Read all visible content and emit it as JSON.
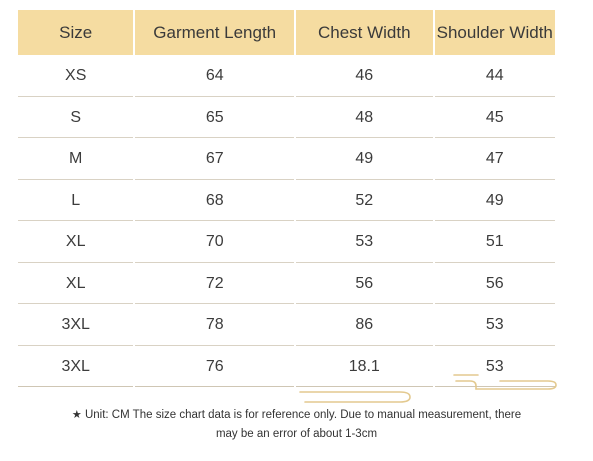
{
  "headers": [
    "Size",
    "Garment Length",
    "Chest Width",
    "Shoulder Width"
  ],
  "rows": [
    [
      "XS",
      "64",
      "46",
      "44"
    ],
    [
      "S",
      "65",
      "48",
      "45"
    ],
    [
      "M",
      "67",
      "49",
      "47"
    ],
    [
      "L",
      "68",
      "52",
      "49"
    ],
    [
      "XL",
      "70",
      "53",
      "51"
    ],
    [
      "XL",
      "72",
      "56",
      "56"
    ],
    [
      "3XL",
      "78",
      "86",
      "53"
    ],
    [
      "3XL",
      "76",
      "18.1",
      "53"
    ]
  ],
  "note": {
    "star": "★",
    "line1": "Unit: CM The size chart data is for reference only. Due to manual measurement, there",
    "line2": "may be an error of about 1-3cm"
  },
  "colors": {
    "header_bg": "#f5dca1",
    "row_divider": "#d9d2c4",
    "decoration": "#e3c98f"
  }
}
